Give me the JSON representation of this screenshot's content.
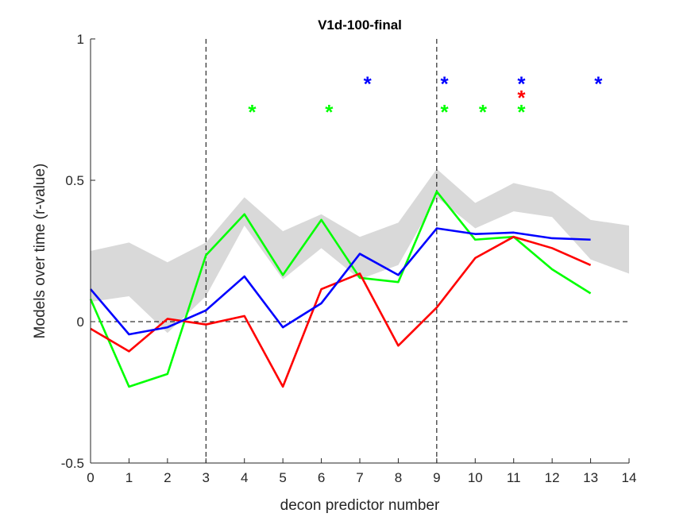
{
  "chart_data": {
    "type": "line",
    "title": "V1d-100-final",
    "xlabel": "decon predictor number",
    "ylabel": "Models over time (r-value)",
    "xlim": [
      0,
      14
    ],
    "ylim": [
      -0.5,
      1
    ],
    "xticks": [
      0,
      1,
      2,
      3,
      4,
      5,
      6,
      7,
      8,
      9,
      10,
      11,
      12,
      13,
      14
    ],
    "yticks": [
      -0.5,
      0,
      0.5,
      1
    ],
    "ytick_labels": [
      "-0.5",
      "0",
      "0.5",
      "1"
    ],
    "grid": false,
    "legend": "none",
    "vertical_reference_lines": [
      3,
      9
    ],
    "horizontal_reference_line": 0,
    "band": {
      "color": "#d9d9d9",
      "x": [
        0,
        1,
        2,
        3,
        4,
        5,
        6,
        7,
        8,
        9,
        10,
        11,
        12,
        13,
        14
      ],
      "upper": [
        0.25,
        0.28,
        0.21,
        0.28,
        0.44,
        0.32,
        0.38,
        0.3,
        0.35,
        0.54,
        0.42,
        0.49,
        0.46,
        0.36,
        0.34
      ],
      "lower": [
        0.07,
        0.09,
        -0.04,
        0.09,
        0.34,
        0.15,
        0.26,
        0.15,
        0.2,
        0.44,
        0.33,
        0.39,
        0.37,
        0.22,
        0.17
      ]
    },
    "series": [
      {
        "color": "#00ff00",
        "x": [
          0,
          1,
          2,
          3,
          4,
          5,
          6,
          7,
          8,
          9,
          10,
          11,
          12,
          13
        ],
        "values": [
          0.08,
          -0.23,
          -0.185,
          0.235,
          0.38,
          0.165,
          0.36,
          0.155,
          0.14,
          0.46,
          0.29,
          0.3,
          0.185,
          0.1
        ]
      },
      {
        "color": "#ff0000",
        "x": [
          0,
          1,
          2,
          3,
          4,
          5,
          6,
          7,
          8,
          9,
          10,
          11,
          12,
          13
        ],
        "values": [
          -0.025,
          -0.105,
          0.01,
          -0.01,
          0.02,
          -0.23,
          0.115,
          0.17,
          -0.085,
          0.05,
          0.225,
          0.3,
          0.26,
          0.2
        ]
      },
      {
        "color": "#0000ff",
        "x": [
          0,
          1,
          2,
          3,
          4,
          5,
          6,
          7,
          8,
          9,
          10,
          11,
          12,
          13
        ],
        "values": [
          0.115,
          -0.045,
          -0.02,
          0.04,
          0.16,
          -0.02,
          0.065,
          0.24,
          0.165,
          0.33,
          0.31,
          0.315,
          0.295,
          0.29
        ]
      }
    ],
    "annotations": [
      {
        "text": "*",
        "color": "#0000ff",
        "x": 7.2,
        "y": 0.85
      },
      {
        "text": "*",
        "color": "#0000ff",
        "x": 9.2,
        "y": 0.85
      },
      {
        "text": "*",
        "color": "#0000ff",
        "x": 11.2,
        "y": 0.85
      },
      {
        "text": "*",
        "color": "#0000ff",
        "x": 13.2,
        "y": 0.85
      },
      {
        "text": "*",
        "color": "#ff0000",
        "x": 11.2,
        "y": 0.8
      },
      {
        "text": "*",
        "color": "#00ff00",
        "x": 4.2,
        "y": 0.75
      },
      {
        "text": "*",
        "color": "#00ff00",
        "x": 6.2,
        "y": 0.75
      },
      {
        "text": "*",
        "color": "#00ff00",
        "x": 9.2,
        "y": 0.75
      },
      {
        "text": "*",
        "color": "#00ff00",
        "x": 10.2,
        "y": 0.75
      },
      {
        "text": "*",
        "color": "#00ff00",
        "x": 11.2,
        "y": 0.75
      }
    ]
  }
}
